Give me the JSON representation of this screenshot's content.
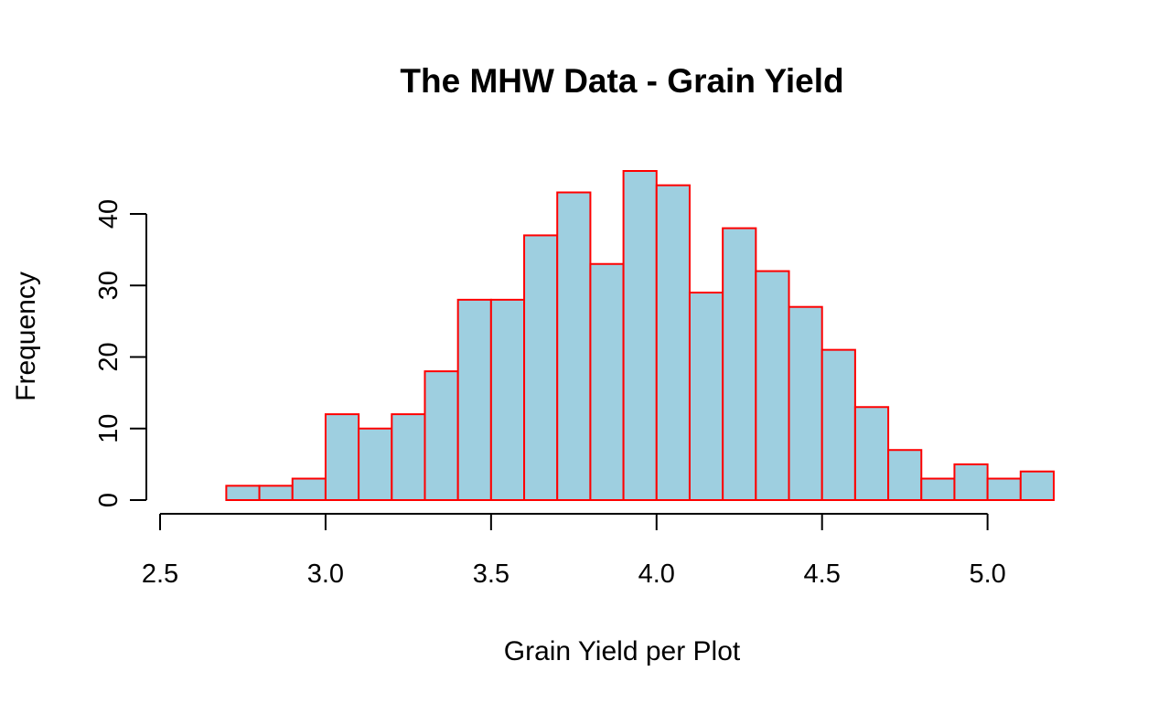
{
  "chart_data": {
    "type": "bar",
    "title": "The MHW Data - Grain Yield",
    "xlabel": "Grain Yield per Plot",
    "ylabel": "Frequency",
    "xlim": [
      2.5,
      5.2
    ],
    "ylim": [
      0,
      46
    ],
    "x_ticks": [
      {
        "value": 2.5,
        "label": "2.5"
      },
      {
        "value": 3.0,
        "label": "3.0"
      },
      {
        "value": 3.5,
        "label": "3.5"
      },
      {
        "value": 4.0,
        "label": "4.0"
      },
      {
        "value": 4.5,
        "label": "4.5"
      },
      {
        "value": 5.0,
        "label": "5.0"
      }
    ],
    "y_ticks": [
      {
        "value": 0,
        "label": "0"
      },
      {
        "value": 10,
        "label": "10"
      },
      {
        "value": 20,
        "label": "20"
      },
      {
        "value": 30,
        "label": "30"
      },
      {
        "value": 40,
        "label": "40"
      }
    ],
    "bin_edges": [
      2.6,
      2.7,
      2.8,
      2.9,
      3.0,
      3.1,
      3.2,
      3.3,
      3.4,
      3.5,
      3.6,
      3.7,
      3.8,
      3.9,
      4.0,
      4.1,
      4.2,
      4.3,
      4.4,
      4.5,
      4.6,
      4.7,
      4.8,
      4.9,
      5.0,
      5.1,
      5.2
    ],
    "values": [
      0,
      2,
      2,
      3,
      12,
      10,
      12,
      18,
      28,
      28,
      37,
      43,
      33,
      46,
      44,
      29,
      38,
      32,
      27,
      21,
      13,
      7,
      3,
      5,
      3,
      4
    ],
    "fill_color": "#9ecfe0",
    "border_color": "#ff0000",
    "grid": false,
    "legend": "none"
  }
}
